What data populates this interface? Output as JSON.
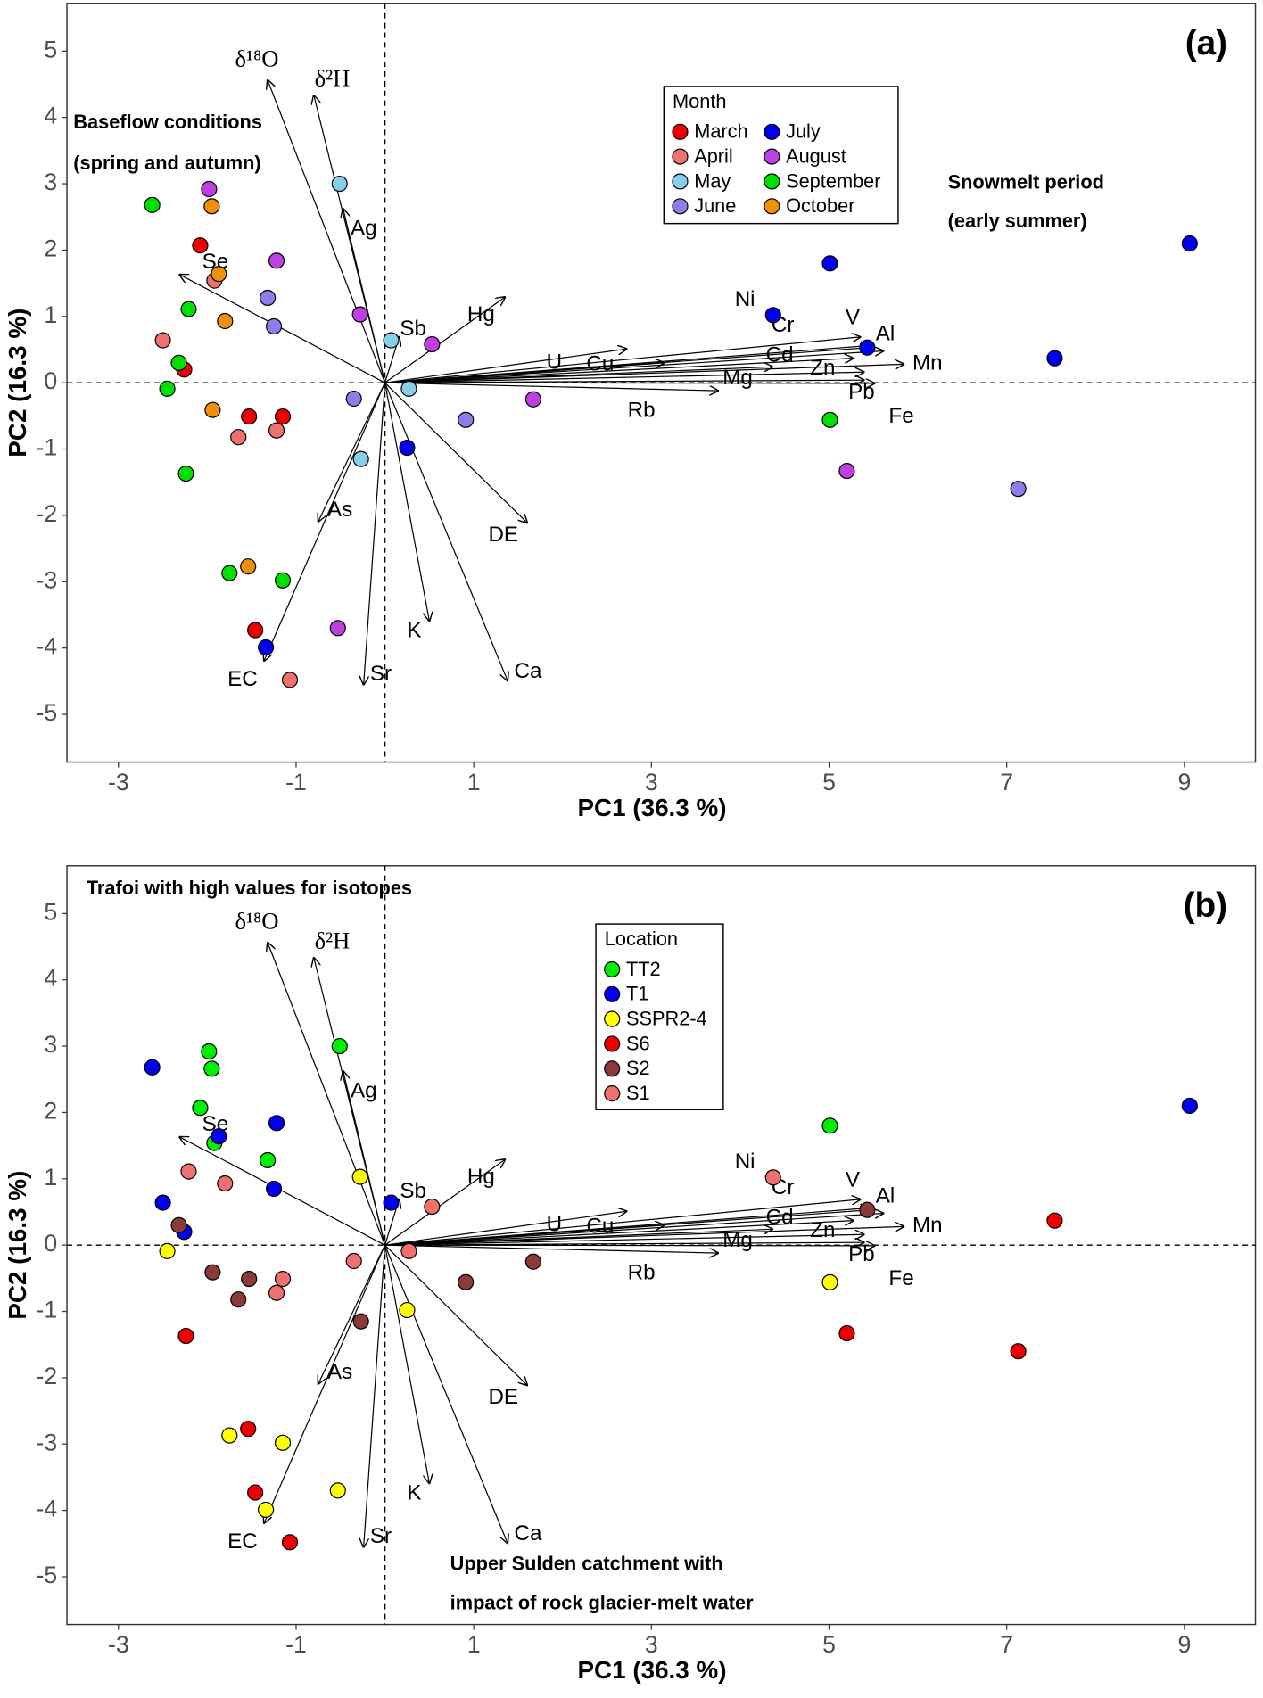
{
  "chart_data": [
    {
      "type": "scatter",
      "panel": "(a)",
      "xlabel": "PC1 (36.3 %)",
      "ylabel": "PC2 (16.3 %)",
      "xlim": [
        -3.58,
        9.8
      ],
      "ylim": [
        -5.72,
        5.72
      ],
      "xticks": [
        -3,
        -1,
        1,
        3,
        5,
        7,
        9
      ],
      "yticks": [
        -5,
        -4,
        -3,
        -2,
        -1,
        0,
        1,
        2,
        3,
        4,
        5
      ],
      "legend_title": "Month",
      "series": [
        {
          "name": "March",
          "color": "#ee0000",
          "x": [
            -2.08,
            -2.26,
            -1.53,
            -1.15,
            -1.46
          ],
          "y": [
            2.07,
            0.2,
            -0.51,
            -0.51,
            -3.73
          ]
        },
        {
          "name": "April",
          "color": "#f07070",
          "x": [
            -1.92,
            -2.5,
            -1.65,
            -1.22,
            -1.07
          ],
          "y": [
            1.54,
            0.64,
            -0.82,
            -0.72,
            -4.48
          ]
        },
        {
          "name": "May",
          "color": "#87ceeb",
          "x": [
            -0.51,
            0.07,
            0.27,
            -0.27
          ],
          "y": [
            3.0,
            0.64,
            -0.09,
            -1.15
          ]
        },
        {
          "name": "June",
          "color": "#8c7ee8",
          "x": [
            -1.32,
            -1.25,
            -0.35,
            0.91,
            7.13
          ],
          "y": [
            1.28,
            0.85,
            -0.24,
            -0.56,
            -1.6
          ]
        },
        {
          "name": "July",
          "color": "#0000ee",
          "x": [
            5.01,
            4.37,
            5.43,
            7.54,
            9.06,
            0.25,
            -1.34
          ],
          "y": [
            1.8,
            1.02,
            0.53,
            0.37,
            2.1,
            -0.98,
            -3.99
          ]
        },
        {
          "name": "August",
          "color": "#bf40e0",
          "x": [
            -1.98,
            -1.22,
            -0.28,
            0.53,
            1.67,
            5.2,
            -0.53
          ],
          "y": [
            2.92,
            1.84,
            1.03,
            0.58,
            -0.25,
            -1.33,
            -3.7
          ]
        },
        {
          "name": "September",
          "color": "#00e000",
          "x": [
            -2.62,
            -2.21,
            -2.32,
            -2.45,
            -2.24,
            -1.75,
            -1.15,
            5.01
          ],
          "y": [
            2.68,
            1.11,
            0.3,
            -0.09,
            -1.37,
            -2.87,
            -2.98,
            -0.56
          ]
        },
        {
          "name": "October",
          "color": "#f0900a",
          "x": [
            -1.95,
            -1.8,
            -1.94,
            -1.54,
            -1.87
          ],
          "y": [
            2.66,
            0.93,
            -0.41,
            -2.77,
            1.64
          ]
        }
      ],
      "loadings": [
        {
          "name": "δ¹⁸O",
          "x": -1.32,
          "y": 4.56
        },
        {
          "name": "δ²H",
          "x": -0.8,
          "y": 4.33
        },
        {
          "name": "Ag",
          "x": -0.47,
          "y": 2.62
        },
        {
          "name": "Se",
          "x": -2.31,
          "y": 1.63
        },
        {
          "name": "Hg",
          "x": 1.35,
          "y": 1.29
        },
        {
          "name": "Sb",
          "x": 0.16,
          "y": 0.69
        },
        {
          "name": "U",
          "x": 2.72,
          "y": 0.51
        },
        {
          "name": "Cu",
          "x": 3.14,
          "y": 0.3
        },
        {
          "name": "Ni",
          "x": 5.45,
          "y": 0.56
        },
        {
          "name": "Cr",
          "x": 5.61,
          "y": 0.48
        },
        {
          "name": "V",
          "x": 5.35,
          "y": 0.69
        },
        {
          "name": "Al",
          "x": 5.45,
          "y": 0.53
        },
        {
          "name": "Cd",
          "x": 5.27,
          "y": 0.37
        },
        {
          "name": "Mn",
          "x": 5.84,
          "y": 0.28
        },
        {
          "name": "Zn",
          "x": 5.39,
          "y": 0.16
        },
        {
          "name": "Mg",
          "x": 4.36,
          "y": 0.24
        },
        {
          "name": "Rb",
          "x": 3.75,
          "y": -0.12
        },
        {
          "name": "Pb",
          "x": 5.39,
          "y": 0.04
        },
        {
          "name": "Fe",
          "x": 5.51,
          "y": -0.01
        },
        {
          "name": "DE",
          "x": 1.6,
          "y": -2.11
        },
        {
          "name": "Ca",
          "x": 1.38,
          "y": -4.49
        },
        {
          "name": "K",
          "x": 0.5,
          "y": -3.59
        },
        {
          "name": "Sr",
          "x": -0.24,
          "y": -4.55
        },
        {
          "name": "EC",
          "x": -1.36,
          "y": -4.19
        },
        {
          "name": "As",
          "x": -0.75,
          "y": -2.09
        }
      ],
      "annotations": [
        "Baseflow conditions",
        "(spring and autumn)",
        "Snowmelt period",
        "(early summer)"
      ]
    },
    {
      "type": "scatter",
      "panel": "(b)",
      "xlabel": "PC1 (36.3 %)",
      "ylabel": "PC2 (16.3 %)",
      "xlim": [
        -3.58,
        9.8
      ],
      "ylim": [
        -5.72,
        5.72
      ],
      "xticks": [
        -3,
        -1,
        1,
        3,
        5,
        7,
        9
      ],
      "yticks": [
        -5,
        -4,
        -3,
        -2,
        -1,
        0,
        1,
        2,
        3,
        4,
        5
      ],
      "legend_title": "Location",
      "series": [
        {
          "name": "TT2",
          "color": "#00ee00",
          "x": [
            -1.98,
            -1.95,
            -2.08,
            -1.92,
            -1.32,
            -0.51,
            5.01
          ],
          "y": [
            2.92,
            2.66,
            2.07,
            1.54,
            1.28,
            3.0,
            1.8
          ]
        },
        {
          "name": "T1",
          "color": "#0000ee",
          "x": [
            -2.62,
            -1.87,
            -1.22,
            -1.25,
            -2.5,
            -2.26,
            0.07,
            9.06
          ],
          "y": [
            2.68,
            1.64,
            1.84,
            0.85,
            0.64,
            0.2,
            0.64,
            2.1
          ]
        },
        {
          "name": "SSPR2-4",
          "color": "#ffff00",
          "x": [
            -0.28,
            -2.45,
            0.25,
            -1.75,
            -1.15,
            -1.34,
            -0.53,
            5.01
          ],
          "y": [
            1.03,
            -0.09,
            -0.98,
            -2.87,
            -2.98,
            -3.99,
            -3.7,
            -0.56
          ]
        },
        {
          "name": "S6",
          "color": "#ee0000",
          "x": [
            -2.24,
            -1.54,
            -1.46,
            -1.07,
            5.2,
            7.54,
            7.13
          ],
          "y": [
            -1.37,
            -2.77,
            -3.73,
            -4.48,
            -1.33,
            0.37,
            -1.6
          ]
        },
        {
          "name": "S2",
          "color": "#8b3a3a",
          "x": [
            -2.32,
            -1.94,
            -1.65,
            -1.53,
            -0.27,
            0.91,
            1.67,
            5.43
          ],
          "y": [
            0.3,
            -0.41,
            -0.82,
            -0.51,
            -1.15,
            -0.56,
            -0.25,
            0.53
          ]
        },
        {
          "name": "S1",
          "color": "#f07070",
          "x": [
            -2.21,
            -1.8,
            -1.15,
            -1.22,
            -0.35,
            0.27,
            0.53,
            4.37
          ],
          "y": [
            1.11,
            0.93,
            -0.51,
            -0.72,
            -0.24,
            -0.09,
            0.58,
            1.02
          ]
        }
      ],
      "loadings": [
        {
          "name": "δ¹⁸O",
          "x": -1.32,
          "y": 4.56
        },
        {
          "name": "δ²H",
          "x": -0.8,
          "y": 4.33
        },
        {
          "name": "Ag",
          "x": -0.47,
          "y": 2.62
        },
        {
          "name": "Se",
          "x": -2.31,
          "y": 1.63
        },
        {
          "name": "Hg",
          "x": 1.35,
          "y": 1.29
        },
        {
          "name": "Sb",
          "x": 0.16,
          "y": 0.69
        },
        {
          "name": "U",
          "x": 2.72,
          "y": 0.51
        },
        {
          "name": "Cu",
          "x": 3.14,
          "y": 0.3
        },
        {
          "name": "Ni",
          "x": 5.45,
          "y": 0.56
        },
        {
          "name": "Cr",
          "x": 5.61,
          "y": 0.48
        },
        {
          "name": "V",
          "x": 5.35,
          "y": 0.69
        },
        {
          "name": "Al",
          "x": 5.45,
          "y": 0.53
        },
        {
          "name": "Cd",
          "x": 5.27,
          "y": 0.37
        },
        {
          "name": "Mn",
          "x": 5.84,
          "y": 0.28
        },
        {
          "name": "Zn",
          "x": 5.39,
          "y": 0.16
        },
        {
          "name": "Mg",
          "x": 4.36,
          "y": 0.24
        },
        {
          "name": "Rb",
          "x": 3.75,
          "y": -0.12
        },
        {
          "name": "Pb",
          "x": 5.39,
          "y": 0.04
        },
        {
          "name": "Fe",
          "x": 5.51,
          "y": -0.01
        },
        {
          "name": "DE",
          "x": 1.6,
          "y": -2.11
        },
        {
          "name": "Ca",
          "x": 1.38,
          "y": -4.49
        },
        {
          "name": "K",
          "x": 0.5,
          "y": -3.59
        },
        {
          "name": "Sr",
          "x": -0.24,
          "y": -4.55
        },
        {
          "name": "EC",
          "x": -1.36,
          "y": -4.19
        },
        {
          "name": "As",
          "x": -0.75,
          "y": -2.09
        }
      ],
      "annotations": [
        "Trafoi with high values for isotopes",
        "Upper Sulden catchment with",
        "impact of rock glacier-melt water"
      ]
    }
  ]
}
